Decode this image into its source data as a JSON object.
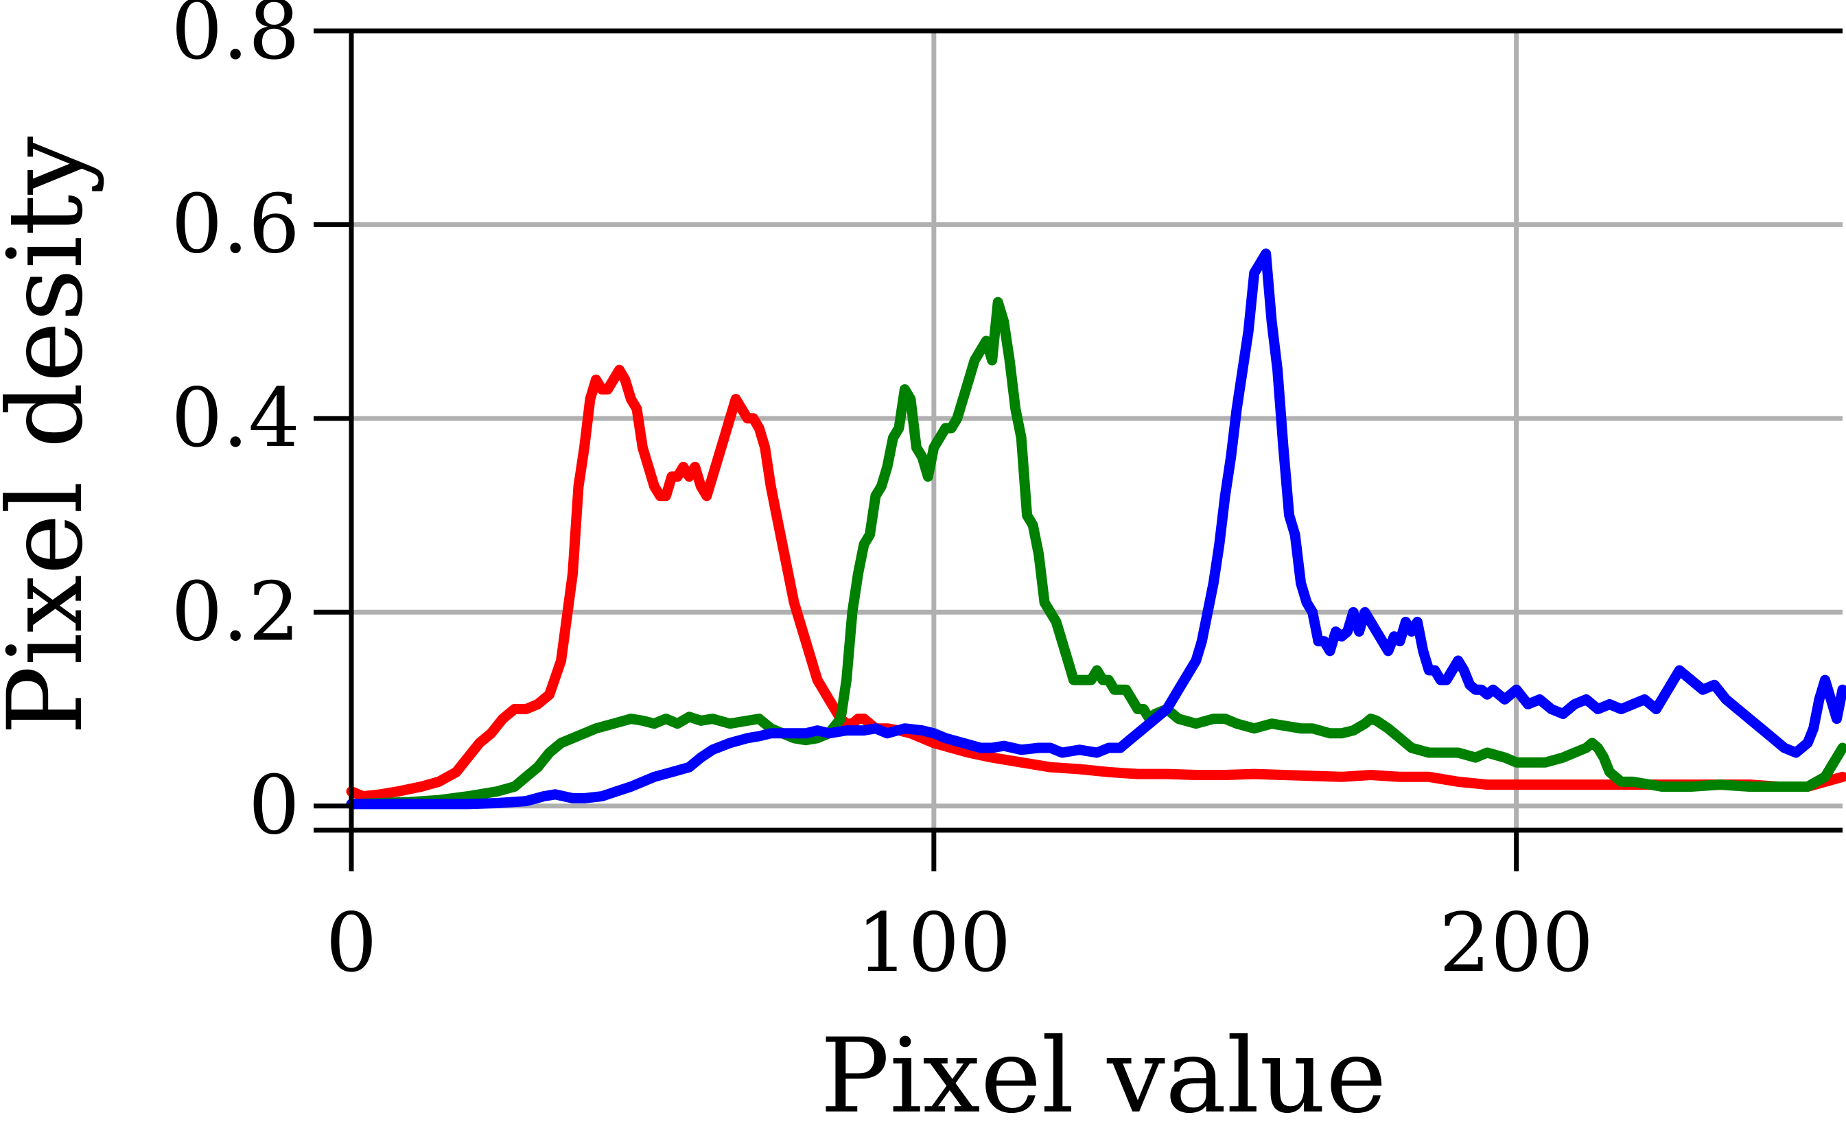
{
  "chart_data": {
    "type": "line",
    "title": "",
    "xlabel": "Pixel value",
    "ylabel": "Pixel desity",
    "xlim": [
      0,
      256
    ],
    "ylim": [
      -0.025,
      0.8
    ],
    "x_ticks": [
      0,
      100,
      200
    ],
    "x_tick_labels": [
      "0",
      "100",
      "200"
    ],
    "y_ticks": [
      0,
      0.2,
      0.4,
      0.6,
      0.8
    ],
    "y_tick_labels": [
      "0",
      "0.2",
      "0.4",
      "0.6",
      "0.8"
    ],
    "grid": true,
    "legend": "none",
    "series": [
      {
        "color": "#ff0000",
        "x": [
          0,
          2,
          5,
          8,
          12,
          15,
          18,
          20,
          22,
          24,
          26,
          28,
          30,
          32,
          34,
          36,
          38,
          39,
          40,
          41,
          42,
          43,
          44,
          45,
          46,
          47,
          48,
          49,
          50,
          51,
          52,
          53,
          54,
          55,
          56,
          57,
          58,
          59,
          60,
          61,
          62,
          63,
          64,
          65,
          66,
          67,
          68,
          69,
          70,
          71,
          72,
          73,
          74,
          75,
          76,
          77,
          78,
          79,
          80,
          81,
          82,
          83,
          84,
          85,
          86,
          87,
          88,
          90,
          92,
          94,
          96,
          98,
          100,
          103,
          106,
          110,
          115,
          120,
          125,
          130,
          135,
          140,
          145,
          150,
          155,
          160,
          165,
          170,
          175,
          180,
          185,
          190,
          195,
          200,
          205,
          210,
          215,
          220,
          225,
          230,
          235,
          240,
          245,
          250,
          253,
          256
        ],
        "y": [
          0.015,
          0.01,
          0.012,
          0.015,
          0.02,
          0.025,
          0.035,
          0.05,
          0.065,
          0.075,
          0.09,
          0.1,
          0.1,
          0.105,
          0.115,
          0.15,
          0.24,
          0.33,
          0.37,
          0.42,
          0.44,
          0.43,
          0.43,
          0.44,
          0.45,
          0.44,
          0.42,
          0.41,
          0.37,
          0.35,
          0.33,
          0.32,
          0.32,
          0.34,
          0.34,
          0.35,
          0.34,
          0.35,
          0.33,
          0.32,
          0.34,
          0.36,
          0.38,
          0.4,
          0.42,
          0.41,
          0.4,
          0.4,
          0.39,
          0.37,
          0.33,
          0.3,
          0.27,
          0.24,
          0.21,
          0.19,
          0.17,
          0.15,
          0.13,
          0.12,
          0.11,
          0.1,
          0.09,
          0.085,
          0.085,
          0.09,
          0.09,
          0.08,
          0.08,
          0.078,
          0.075,
          0.07,
          0.065,
          0.06,
          0.055,
          0.05,
          0.045,
          0.04,
          0.038,
          0.035,
          0.033,
          0.033,
          0.032,
          0.032,
          0.033,
          0.032,
          0.031,
          0.03,
          0.032,
          0.03,
          0.03,
          0.025,
          0.022,
          0.022,
          0.022,
          0.022,
          0.022,
          0.022,
          0.022,
          0.022,
          0.022,
          0.022,
          0.02,
          0.02,
          0.025,
          0.03
        ]
      },
      {
        "color": "#008000",
        "x": [
          0,
          10,
          15,
          20,
          25,
          28,
          30,
          32,
          34,
          36,
          38,
          40,
          42,
          45,
          48,
          50,
          52,
          54,
          56,
          58,
          60,
          62,
          65,
          68,
          70,
          72,
          74,
          76,
          78,
          80,
          82,
          84,
          85,
          86,
          87,
          88,
          89,
          90,
          91,
          92,
          93,
          94,
          95,
          96,
          97,
          98,
          99,
          100,
          101,
          102,
          103,
          104,
          105,
          106,
          107,
          108,
          109,
          110,
          111,
          112,
          113,
          114,
          115,
          116,
          117,
          118,
          119,
          120,
          121,
          122,
          123,
          124,
          125,
          126,
          127,
          128,
          129,
          130,
          131,
          132,
          133,
          134,
          135,
          136,
          137,
          138,
          140,
          142,
          145,
          148,
          150,
          152,
          155,
          158,
          160,
          163,
          165,
          168,
          170,
          172,
          174,
          175,
          176,
          178,
          180,
          182,
          185,
          188,
          190,
          193,
          195,
          198,
          200,
          202,
          205,
          208,
          210,
          212,
          213,
          214,
          215,
          216,
          218,
          220,
          223,
          225,
          230,
          235,
          240,
          245,
          250,
          253,
          256
        ],
        "y": [
          0.002,
          0.004,
          0.006,
          0.01,
          0.015,
          0.02,
          0.03,
          0.04,
          0.055,
          0.065,
          0.07,
          0.075,
          0.08,
          0.085,
          0.09,
          0.088,
          0.085,
          0.09,
          0.085,
          0.092,
          0.088,
          0.09,
          0.085,
          0.088,
          0.09,
          0.08,
          0.075,
          0.07,
          0.068,
          0.07,
          0.075,
          0.09,
          0.13,
          0.2,
          0.24,
          0.27,
          0.28,
          0.32,
          0.33,
          0.35,
          0.38,
          0.39,
          0.43,
          0.42,
          0.37,
          0.36,
          0.34,
          0.37,
          0.38,
          0.39,
          0.39,
          0.4,
          0.42,
          0.44,
          0.46,
          0.47,
          0.48,
          0.46,
          0.52,
          0.5,
          0.46,
          0.41,
          0.38,
          0.3,
          0.29,
          0.26,
          0.21,
          0.2,
          0.19,
          0.17,
          0.15,
          0.13,
          0.13,
          0.13,
          0.13,
          0.14,
          0.13,
          0.13,
          0.12,
          0.12,
          0.12,
          0.11,
          0.1,
          0.1,
          0.09,
          0.095,
          0.1,
          0.09,
          0.085,
          0.09,
          0.09,
          0.085,
          0.08,
          0.085,
          0.083,
          0.08,
          0.08,
          0.075,
          0.075,
          0.078,
          0.085,
          0.09,
          0.088,
          0.08,
          0.07,
          0.06,
          0.055,
          0.055,
          0.055,
          0.05,
          0.055,
          0.05,
          0.045,
          0.045,
          0.045,
          0.05,
          0.055,
          0.06,
          0.065,
          0.06,
          0.05,
          0.035,
          0.025,
          0.025,
          0.022,
          0.02,
          0.02,
          0.022,
          0.02,
          0.02,
          0.02,
          0.03,
          0.06
        ]
      },
      {
        "color": "#0000ff",
        "x": [
          0,
          10,
          20,
          25,
          30,
          33,
          35,
          38,
          40,
          43,
          45,
          48,
          50,
          52,
          55,
          58,
          60,
          62,
          65,
          68,
          70,
          72,
          75,
          78,
          80,
          82,
          85,
          88,
          90,
          92,
          95,
          98,
          100,
          102,
          105,
          108,
          110,
          112,
          115,
          118,
          120,
          122,
          125,
          128,
          130,
          132,
          134,
          135,
          136,
          138,
          140,
          142,
          144,
          145,
          146,
          147,
          148,
          149,
          150,
          151,
          152,
          153,
          154,
          155,
          156,
          157,
          158,
          159,
          160,
          161,
          162,
          163,
          164,
          165,
          166,
          167,
          168,
          169,
          170,
          171,
          172,
          173,
          174,
          175,
          176,
          177,
          178,
          179,
          180,
          181,
          182,
          183,
          184,
          185,
          186,
          187,
          188,
          189,
          190,
          191,
          192,
          193,
          194,
          195,
          196,
          198,
          200,
          202,
          204,
          206,
          208,
          210,
          212,
          214,
          216,
          218,
          220,
          222,
          224,
          226,
          228,
          230,
          232,
          234,
          236,
          238,
          240,
          242,
          244,
          246,
          248,
          250,
          251,
          252,
          253,
          254,
          255,
          256
        ],
        "y": [
          0.002,
          0.002,
          0.002,
          0.003,
          0.005,
          0.01,
          0.012,
          0.008,
          0.008,
          0.01,
          0.014,
          0.02,
          0.025,
          0.03,
          0.035,
          0.04,
          0.05,
          0.058,
          0.065,
          0.07,
          0.072,
          0.075,
          0.075,
          0.075,
          0.078,
          0.075,
          0.078,
          0.078,
          0.08,
          0.075,
          0.08,
          0.078,
          0.075,
          0.07,
          0.065,
          0.06,
          0.06,
          0.062,
          0.058,
          0.06,
          0.06,
          0.055,
          0.058,
          0.055,
          0.06,
          0.06,
          0.07,
          0.075,
          0.08,
          0.09,
          0.1,
          0.12,
          0.14,
          0.15,
          0.17,
          0.2,
          0.23,
          0.27,
          0.32,
          0.36,
          0.41,
          0.45,
          0.49,
          0.55,
          0.56,
          0.57,
          0.5,
          0.45,
          0.37,
          0.3,
          0.28,
          0.23,
          0.21,
          0.2,
          0.17,
          0.17,
          0.16,
          0.18,
          0.175,
          0.18,
          0.2,
          0.18,
          0.2,
          0.19,
          0.18,
          0.17,
          0.16,
          0.175,
          0.17,
          0.19,
          0.18,
          0.19,
          0.16,
          0.14,
          0.14,
          0.13,
          0.13,
          0.14,
          0.15,
          0.14,
          0.125,
          0.12,
          0.12,
          0.115,
          0.12,
          0.11,
          0.12,
          0.105,
          0.11,
          0.1,
          0.095,
          0.105,
          0.11,
          0.1,
          0.105,
          0.1,
          0.105,
          0.11,
          0.1,
          0.12,
          0.14,
          0.13,
          0.12,
          0.125,
          0.11,
          0.1,
          0.09,
          0.08,
          0.07,
          0.06,
          0.055,
          0.065,
          0.08,
          0.11,
          0.13,
          0.11,
          0.09,
          0.12
        ]
      }
    ]
  }
}
